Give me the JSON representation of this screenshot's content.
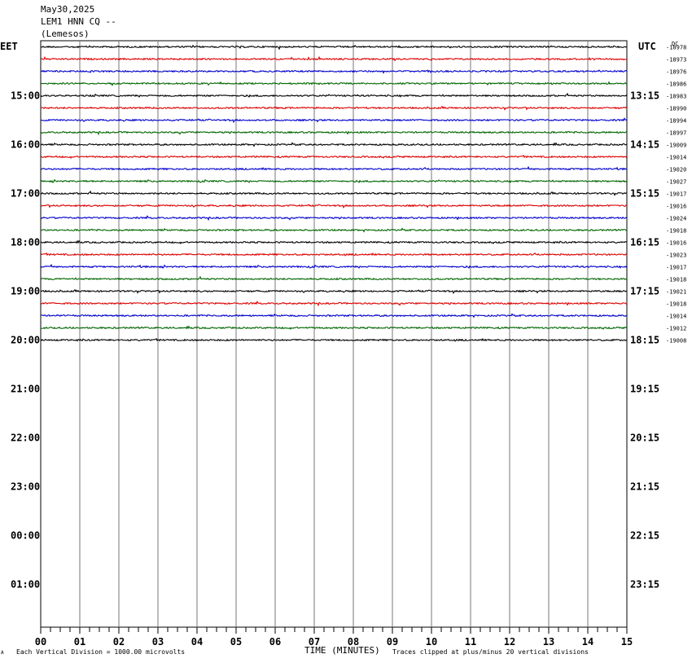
{
  "header": {
    "date": "May30,2025",
    "station": "LEM1 HNN CQ --",
    "location": "(Lemesos)"
  },
  "left_tz": "EET",
  "right_tz": "UTC",
  "dc_label": "DC",
  "footer": {
    "scale_mark": "A",
    "scale_text": "Each Vertical Division = 1000.00 microvolts",
    "clip_text": "Traces clipped at plus/minus 20 vertical divisions"
  },
  "chart_data": {
    "type": "line",
    "title": "May30,2025 LEM1 HNN CQ -- (Lemesos)",
    "xlabel": "TIME (MINUTES)",
    "xlim": [
      0,
      15
    ],
    "x_ticks": [
      "00",
      "01",
      "02",
      "03",
      "04",
      "05",
      "06",
      "07",
      "08",
      "09",
      "10",
      "11",
      "12",
      "13",
      "14",
      "15"
    ],
    "row_minutes": 15,
    "total_rows": 48,
    "hour_labels_left": [
      "15:00",
      "16:00",
      "17:00",
      "18:00",
      "19:00",
      "20:00",
      "21:00",
      "22:00",
      "23:00",
      "00:00",
      "01:00"
    ],
    "hour_labels_right": [
      "13:15",
      "14:15",
      "15:15",
      "16:15",
      "17:15",
      "18:15",
      "19:15",
      "20:15",
      "21:15",
      "22:15",
      "23:15"
    ],
    "trace_colors": [
      "#000000",
      "#dd0000",
      "#0000cc",
      "#006600"
    ],
    "traces": [
      {
        "dc": "-18978",
        "color": "#000000"
      },
      {
        "dc": "-18973",
        "color": "#dd0000"
      },
      {
        "dc": "-18976",
        "color": "#0000cc"
      },
      {
        "dc": "-18986",
        "color": "#006600"
      },
      {
        "dc": "-18983",
        "color": "#000000"
      },
      {
        "dc": "-18990",
        "color": "#dd0000"
      },
      {
        "dc": "-18994",
        "color": "#0000cc"
      },
      {
        "dc": "-18997",
        "color": "#006600"
      },
      {
        "dc": "-19009",
        "color": "#000000"
      },
      {
        "dc": "-19014",
        "color": "#dd0000"
      },
      {
        "dc": "-19020",
        "color": "#0000cc"
      },
      {
        "dc": "-19027",
        "color": "#006600"
      },
      {
        "dc": "-19017",
        "color": "#000000"
      },
      {
        "dc": "-19016",
        "color": "#dd0000"
      },
      {
        "dc": "-19024",
        "color": "#0000cc"
      },
      {
        "dc": "-19018",
        "color": "#006600"
      },
      {
        "dc": "-19016",
        "color": "#000000"
      },
      {
        "dc": "-19023",
        "color": "#dd0000"
      },
      {
        "dc": "-19017",
        "color": "#0000cc"
      },
      {
        "dc": "-19018",
        "color": "#006600"
      },
      {
        "dc": "-19021",
        "color": "#000000"
      },
      {
        "dc": "-19018",
        "color": "#dd0000"
      },
      {
        "dc": "-19014",
        "color": "#0000cc"
      },
      {
        "dc": "-19012",
        "color": "#006600"
      },
      {
        "dc": "-19008",
        "color": "#000000"
      }
    ]
  }
}
